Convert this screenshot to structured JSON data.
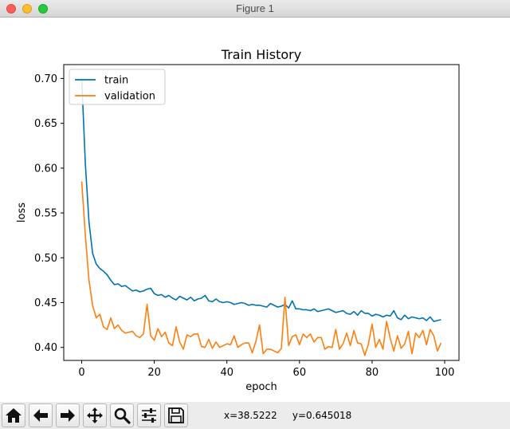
{
  "window": {
    "title": "Figure 1"
  },
  "colors": {
    "train": "#0072b2",
    "validation": "#ff7f0e"
  },
  "toolbar": {
    "buttons": [
      {
        "name": "home-button",
        "icon": "home-icon"
      },
      {
        "name": "back-button",
        "icon": "arrow-left-icon"
      },
      {
        "name": "forward-button",
        "icon": "arrow-right-icon"
      },
      {
        "name": "pan-button",
        "icon": "move-icon"
      },
      {
        "name": "zoom-button",
        "icon": "magnifier-icon"
      },
      {
        "name": "configure-subplots-button",
        "icon": "sliders-icon"
      },
      {
        "name": "save-button",
        "icon": "floppy-disk-icon"
      }
    ],
    "coords_x": "x=38.5222",
    "coords_y": "y=0.645018"
  },
  "chart_data": {
    "type": "line",
    "title": "Train History",
    "xlabel": "epoch",
    "ylabel": "loss",
    "xlim": [
      -4.95,
      103.95
    ],
    "ylim": [
      0.3855,
      0.7155
    ],
    "xticks": [
      0,
      20,
      40,
      60,
      80,
      100
    ],
    "yticks": [
      0.4,
      0.45,
      0.5,
      0.55,
      0.6,
      0.65,
      0.7
    ],
    "ytick_labels": [
      "0.40",
      "0.45",
      "0.50",
      "0.55",
      "0.60",
      "0.65",
      "0.70"
    ],
    "legend": {
      "position": "upper-left",
      "entries": [
        "train",
        "validation"
      ]
    },
    "grid": false,
    "x": [
      0,
      1,
      2,
      3,
      4,
      5,
      6,
      7,
      8,
      9,
      10,
      11,
      12,
      13,
      14,
      15,
      16,
      17,
      18,
      19,
      20,
      21,
      22,
      23,
      24,
      25,
      26,
      27,
      28,
      29,
      30,
      31,
      32,
      33,
      34,
      35,
      36,
      37,
      38,
      39,
      40,
      41,
      42,
      43,
      44,
      45,
      46,
      47,
      48,
      49,
      50,
      51,
      52,
      53,
      54,
      55,
      56,
      57,
      58,
      59,
      60,
      61,
      62,
      63,
      64,
      65,
      66,
      67,
      68,
      69,
      70,
      71,
      72,
      73,
      74,
      75,
      76,
      77,
      78,
      79,
      80,
      81,
      82,
      83,
      84,
      85,
      86,
      87,
      88,
      89,
      90,
      91,
      92,
      93,
      94,
      95,
      96,
      97,
      98,
      99
    ],
    "series": [
      {
        "name": "train",
        "values": [
          0.7,
          0.605,
          0.54,
          0.505,
          0.493,
          0.488,
          0.485,
          0.481,
          0.475,
          0.47,
          0.471,
          0.468,
          0.469,
          0.466,
          0.463,
          0.464,
          0.462,
          0.463,
          0.465,
          0.466,
          0.46,
          0.458,
          0.459,
          0.456,
          0.458,
          0.455,
          0.453,
          0.457,
          0.455,
          0.453,
          0.456,
          0.452,
          0.454,
          0.455,
          0.458,
          0.452,
          0.451,
          0.454,
          0.451,
          0.45,
          0.451,
          0.45,
          0.448,
          0.449,
          0.45,
          0.449,
          0.447,
          0.448,
          0.447,
          0.447,
          0.446,
          0.445,
          0.449,
          0.447,
          0.445,
          0.446,
          0.448,
          0.444,
          0.452,
          0.443,
          0.443,
          0.442,
          0.442,
          0.441,
          0.443,
          0.44,
          0.441,
          0.442,
          0.443,
          0.441,
          0.439,
          0.44,
          0.441,
          0.438,
          0.437,
          0.44,
          0.436,
          0.441,
          0.438,
          0.438,
          0.435,
          0.437,
          0.436,
          0.434,
          0.436,
          0.435,
          0.441,
          0.433,
          0.431,
          0.436,
          0.432,
          0.434,
          0.433,
          0.432,
          0.433,
          0.43,
          0.434,
          0.429,
          0.43,
          0.431
        ]
      },
      {
        "name": "validation",
        "values": [
          0.585,
          0.525,
          0.475,
          0.447,
          0.433,
          0.437,
          0.423,
          0.42,
          0.433,
          0.421,
          0.425,
          0.419,
          0.416,
          0.417,
          0.418,
          0.413,
          0.411,
          0.415,
          0.448,
          0.413,
          0.408,
          0.421,
          0.412,
          0.417,
          0.405,
          0.402,
          0.423,
          0.406,
          0.398,
          0.414,
          0.412,
          0.415,
          0.415,
          0.401,
          0.4,
          0.409,
          0.399,
          0.406,
          0.4,
          0.402,
          0.404,
          0.403,
          0.413,
          0.4,
          0.403,
          0.405,
          0.405,
          0.394,
          0.407,
          0.425,
          0.393,
          0.398,
          0.398,
          0.396,
          0.394,
          0.399,
          0.456,
          0.402,
          0.412,
          0.414,
          0.403,
          0.415,
          0.411,
          0.415,
          0.406,
          0.411,
          0.411,
          0.398,
          0.401,
          0.4,
          0.42,
          0.398,
          0.404,
          0.416,
          0.402,
          0.419,
          0.405,
          0.404,
          0.391,
          0.404,
          0.426,
          0.4,
          0.409,
          0.398,
          0.429,
          0.41,
          0.396,
          0.413,
          0.399,
          0.404,
          0.418,
          0.393,
          0.416,
          0.411,
          0.419,
          0.403,
          0.42,
          0.413,
          0.396,
          0.405
        ]
      }
    ]
  }
}
